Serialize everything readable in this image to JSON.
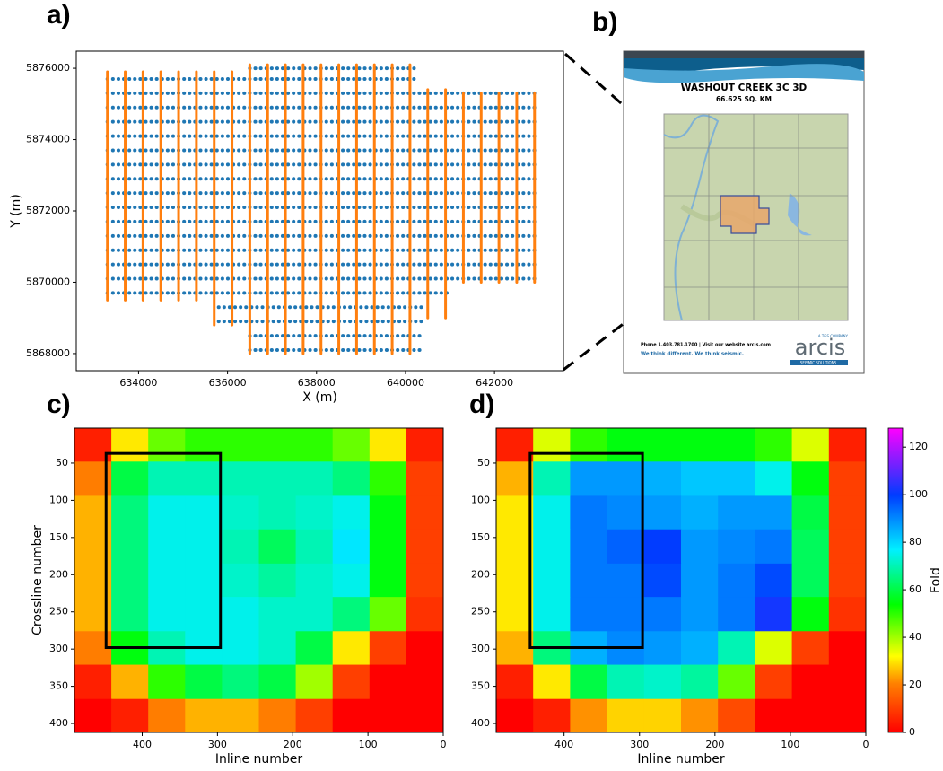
{
  "panel_labels": [
    "a)",
    "b)",
    "c)",
    "d)"
  ],
  "document": {
    "title": "WASHOUT CREEK 3C 3D",
    "subtitle": "66.625 SQ. KM",
    "contact": "Phone 1.403.781.1700 | Visit our website arcis.com",
    "slogan": "We think different.  We think seismic.",
    "logo": "arcis",
    "logo_tagline": "A TGS COMPANY",
    "logo_sub": "SEISMIC SOLUTIONS"
  },
  "chart_data": [
    {
      "type": "segments",
      "xlabel": "X (m)",
      "ylabel": "Y (m)",
      "xlim": [
        632600,
        643550
      ],
      "ylim": [
        5867520,
        5876480
      ],
      "xticks": [
        634000,
        636000,
        638000,
        640000,
        642000
      ],
      "yticks": [
        5868000,
        5870000,
        5872000,
        5874000,
        5876000
      ],
      "series": [
        {
          "color": "#1f77b4",
          "segments": [
            [
              636500,
              5868100,
              640400,
              5868100
            ],
            [
              636500,
              5868500,
              640400,
              5868500
            ],
            [
              635800,
              5868900,
              640400,
              5868900
            ],
            [
              635800,
              5869300,
              640400,
              5869300
            ],
            [
              633300,
              5869700,
              641000,
              5869700
            ],
            [
              633300,
              5870100,
              643000,
              5870100
            ],
            [
              633300,
              5870500,
              643000,
              5870500
            ],
            [
              633300,
              5870900,
              643000,
              5870900
            ],
            [
              633300,
              5871300,
              643000,
              5871300
            ],
            [
              633300,
              5871700,
              643000,
              5871700
            ],
            [
              633300,
              5872100,
              643000,
              5872100
            ],
            [
              633300,
              5872500,
              643000,
              5872500
            ],
            [
              633300,
              5872900,
              643000,
              5872900
            ],
            [
              633300,
              5873300,
              643000,
              5873300
            ],
            [
              633300,
              5873700,
              643000,
              5873700
            ],
            [
              633300,
              5874100,
              643000,
              5874100
            ],
            [
              633300,
              5874500,
              643000,
              5874500
            ],
            [
              633300,
              5874900,
              643000,
              5874900
            ],
            [
              633300,
              5875300,
              643000,
              5875300
            ],
            [
              633300,
              5875700,
              640300,
              5875700
            ],
            [
              636500,
              5876000,
              640300,
              5876000
            ]
          ]
        },
        {
          "color": "#ff7f0e",
          "segments": [
            [
              633300,
              5869500,
              633300,
              5875900
            ],
            [
              633700,
              5869500,
              633700,
              5875900
            ],
            [
              634100,
              5869500,
              634100,
              5875900
            ],
            [
              634500,
              5869500,
              634500,
              5875900
            ],
            [
              634900,
              5869500,
              634900,
              5875900
            ],
            [
              635300,
              5869500,
              635300,
              5875900
            ],
            [
              635700,
              5868800,
              635700,
              5875900
            ],
            [
              636100,
              5868800,
              636100,
              5875900
            ],
            [
              636500,
              5868000,
              636500,
              5876100
            ],
            [
              636900,
              5868000,
              636900,
              5876100
            ],
            [
              637300,
              5868000,
              637300,
              5876100
            ],
            [
              637700,
              5868000,
              637700,
              5876100
            ],
            [
              638100,
              5868000,
              638100,
              5876100
            ],
            [
              638500,
              5868000,
              638500,
              5876100
            ],
            [
              638900,
              5868000,
              638900,
              5876100
            ],
            [
              639300,
              5868000,
              639300,
              5876100
            ],
            [
              639700,
              5868000,
              639700,
              5876100
            ],
            [
              640100,
              5868000,
              640100,
              5876100
            ],
            [
              640500,
              5869000,
              640500,
              5875400
            ],
            [
              640900,
              5869000,
              640900,
              5875400
            ],
            [
              641300,
              5870000,
              641300,
              5875300
            ],
            [
              641700,
              5870000,
              641700,
              5875300
            ],
            [
              642100,
              5870000,
              642100,
              5875300
            ],
            [
              642500,
              5870000,
              642500,
              5875300
            ],
            [
              642900,
              5870000,
              642900,
              5875300
            ]
          ]
        }
      ]
    },
    {
      "type": "heatmap",
      "xlabel": "Inline number",
      "ylabel": "Crossline number",
      "xlim": [
        490,
        0
      ],
      "ylim": [
        412,
        3
      ],
      "xticks": [
        400,
        300,
        200,
        100,
        0
      ],
      "yticks": [
        50,
        100,
        150,
        200,
        250,
        300,
        350,
        400
      ],
      "colormap": "gist_rainbow",
      "clim": [
        0,
        128
      ],
      "xbins": [
        490,
        441,
        392,
        343,
        294,
        245,
        196,
        147,
        98,
        49,
        0
      ],
      "ybins": [
        3,
        48,
        94,
        139,
        185,
        230,
        276,
        321,
        367,
        412
      ],
      "values": [
        [
          5,
          30,
          45,
          50,
          50,
          50,
          50,
          45,
          30,
          5
        ],
        [
          20,
          60,
          70,
          70,
          70,
          70,
          70,
          65,
          50,
          10
        ],
        [
          25,
          65,
          75,
          75,
          72,
          70,
          72,
          75,
          55,
          10
        ],
        [
          25,
          65,
          75,
          75,
          70,
          62,
          70,
          78,
          55,
          10
        ],
        [
          25,
          65,
          75,
          75,
          72,
          68,
          72,
          75,
          55,
          10
        ],
        [
          25,
          65,
          75,
          75,
          75,
          72,
          72,
          65,
          45,
          8
        ],
        [
          20,
          55,
          70,
          75,
          75,
          72,
          60,
          30,
          10,
          0
        ],
        [
          5,
          25,
          50,
          60,
          65,
          60,
          40,
          10,
          0,
          0
        ],
        [
          0,
          5,
          20,
          25,
          25,
          20,
          10,
          0,
          0,
          0
        ]
      ],
      "box": {
        "x": [
          448,
          296
        ],
        "y": [
          37,
          298
        ]
      }
    },
    {
      "type": "heatmap",
      "xlabel": "Inline number",
      "xlim": [
        490,
        0
      ],
      "ylim": [
        412,
        3
      ],
      "xticks": [
        400,
        300,
        200,
        100,
        0
      ],
      "yticks": [
        50,
        100,
        150,
        200,
        250,
        300,
        350,
        400
      ],
      "colormap": "gist_rainbow",
      "clim": [
        0,
        128
      ],
      "xbins": [
        490,
        441,
        392,
        343,
        294,
        245,
        196,
        147,
        98,
        49,
        0
      ],
      "ybins": [
        3,
        48,
        94,
        139,
        185,
        230,
        276,
        321,
        367,
        412
      ],
      "values": [
        [
          5,
          35,
          50,
          55,
          55,
          55,
          55,
          50,
          35,
          5
        ],
        [
          25,
          70,
          88,
          88,
          85,
          82,
          82,
          75,
          55,
          10
        ],
        [
          30,
          75,
          92,
          90,
          88,
          85,
          88,
          88,
          60,
          10
        ],
        [
          30,
          75,
          92,
          95,
          100,
          88,
          90,
          92,
          62,
          10
        ],
        [
          30,
          75,
          92,
          92,
          98,
          88,
          92,
          98,
          62,
          10
        ],
        [
          30,
          75,
          92,
          92,
          92,
          88,
          92,
          102,
          55,
          8
        ],
        [
          25,
          65,
          85,
          90,
          88,
          85,
          70,
          35,
          10,
          0
        ],
        [
          5,
          30,
          60,
          70,
          72,
          68,
          45,
          10,
          0,
          0
        ],
        [
          0,
          5,
          22,
          28,
          28,
          22,
          12,
          0,
          0,
          0
        ]
      ],
      "box": {
        "x": [
          445,
          296
        ],
        "y": [
          37,
          298
        ]
      },
      "colorbar": {
        "label": "Fold",
        "ticks": [
          0,
          20,
          40,
          60,
          80,
          100,
          120
        ]
      }
    }
  ]
}
